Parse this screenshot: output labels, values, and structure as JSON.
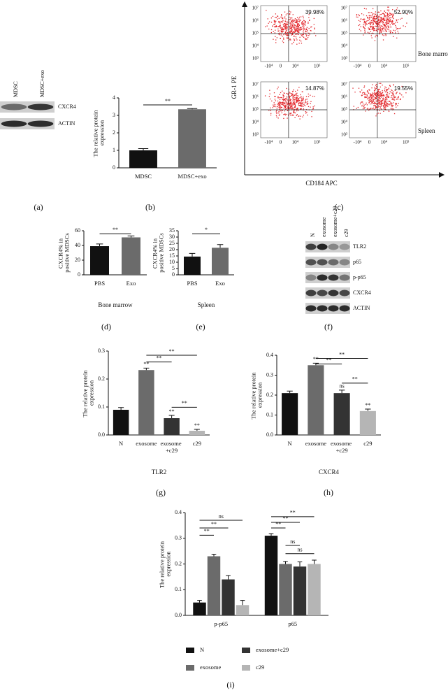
{
  "panel_labels": [
    "(a)",
    "(b)",
    "(c)",
    "(d)",
    "(e)",
    "(f)",
    "(g)",
    "(h)",
    "(i)"
  ],
  "blot_a": {
    "lanes": [
      "MDSC",
      "MDSC+exo"
    ],
    "rows": [
      "CXCR4",
      "ACTIN"
    ]
  },
  "flow": {
    "y_label": "GR-1 PE",
    "x_label": "CD184 APC",
    "tissues": [
      "Bone marrow",
      "Spleen"
    ],
    "yticks": [
      "10⁷",
      "10⁶",
      "10⁵",
      "10⁴",
      "10³"
    ],
    "xticks": [
      "-10⁴",
      "0",
      "10⁴",
      "10⁵"
    ],
    "percentages": [
      "39.98%",
      "52.90%",
      "14.87%",
      "19.55%"
    ]
  },
  "blot_f": {
    "lanes": [
      "N",
      "exosome",
      "exosome+c29",
      "c29"
    ],
    "rows": [
      "TLR2",
      "p65",
      "p-p65",
      "CXCR4",
      "ACTIN"
    ]
  },
  "chart_data": [
    {
      "type": "bar",
      "ylabel": "The relative protein expression",
      "categories": [
        "MDSC",
        "MDSC+exo"
      ],
      "values": [
        1.0,
        3.35
      ],
      "errors": [
        0.1,
        0.04
      ],
      "colors": [
        "#111111",
        "#6b6b6b"
      ],
      "ylim": [
        0,
        4
      ],
      "yticks": [
        0,
        1,
        2,
        3,
        4
      ],
      "brackets": [
        "**"
      ]
    },
    {
      "type": "bar",
      "ylabel": "CXCR4% in positive MDSCs",
      "xlabel": "Bone marrow",
      "categories": [
        "PBS",
        "Exo"
      ],
      "values": [
        39,
        51
      ],
      "errors": [
        3,
        2
      ],
      "colors": [
        "#111111",
        "#6b6b6b"
      ],
      "ylim": [
        0,
        60
      ],
      "yticks": [
        0,
        20,
        40,
        60
      ],
      "brackets": [
        "**"
      ]
    },
    {
      "type": "bar",
      "ylabel": "CXCR4% in positive MDSCs",
      "xlabel": "Spleen",
      "categories": [
        "PBS",
        "Exo"
      ],
      "values": [
        14.5,
        21.5
      ],
      "errors": [
        2.5,
        2.5
      ],
      "colors": [
        "#111111",
        "#6b6b6b"
      ],
      "ylim": [
        0,
        35
      ],
      "yticks": [
        0,
        5,
        10,
        15,
        20,
        25,
        30,
        35
      ],
      "brackets": [
        "*"
      ]
    },
    {
      "type": "bar",
      "ylabel": "The relative protein expression",
      "xlabel": "TLR2",
      "categories": [
        "N",
        "exosome",
        "exosome +c29",
        "c29"
      ],
      "values": [
        0.09,
        0.232,
        0.06,
        0.015
      ],
      "errors": [
        0.008,
        0.007,
        0.01,
        0.005
      ],
      "colors": [
        "#111111",
        "#6b6b6b",
        "#333333",
        "#b5b5b5"
      ],
      "ylim": [
        0,
        0.3
      ],
      "yticks": [
        {
          "value": 0,
          "label": "0.0"
        },
        0.1,
        0.2,
        0.3
      ],
      "bar_labels": [
        null,
        "**",
        "**",
        "**"
      ],
      "brackets": [
        "**",
        "**",
        "**"
      ]
    },
    {
      "type": "bar",
      "ylabel": "The relative protein expression",
      "xlabel": "CXCR4",
      "categories": [
        "N",
        "exosome",
        "exosome +c29",
        "c29"
      ],
      "values": [
        0.21,
        0.35,
        0.21,
        0.12
      ],
      "errors": [
        0.01,
        0.01,
        0.015,
        0.01
      ],
      "colors": [
        "#111111",
        "#6b6b6b",
        "#333333",
        "#b5b5b5"
      ],
      "ylim": [
        0,
        0.4
      ],
      "yticks": [
        {
          "value": 0,
          "label": "0.0"
        },
        0.1,
        0.2,
        0.3,
        0.4
      ],
      "bar_labels": [
        null,
        "**",
        "ns",
        "**"
      ],
      "brackets": [
        "**",
        "**",
        "**"
      ]
    },
    {
      "type": "bar",
      "ylabel": "The relative protein expression",
      "categories": [
        "p-p65",
        "p65"
      ],
      "series": [
        {
          "name": "N",
          "color": "#111111",
          "values": [
            0.05,
            0.31
          ],
          "errors": [
            0.008,
            0.008
          ]
        },
        {
          "name": "exosome",
          "color": "#6b6b6b",
          "values": [
            0.23,
            0.2
          ],
          "errors": [
            0.008,
            0.01
          ]
        },
        {
          "name": "exosome+c29",
          "color": "#333333",
          "values": [
            0.14,
            0.19
          ],
          "errors": [
            0.015,
            0.018
          ]
        },
        {
          "name": "c29",
          "color": "#b5b5b5",
          "values": [
            0.04,
            0.2
          ],
          "errors": [
            0.018,
            0.015
          ]
        }
      ],
      "ylim": [
        0,
        0.4
      ],
      "yticks": [
        {
          "value": 0,
          "label": "0.0"
        },
        0.1,
        0.2,
        0.3,
        0.4
      ],
      "brackets": [
        "ns",
        "**",
        "**",
        "**",
        "**",
        "**",
        "ns",
        "ns"
      ]
    }
  ]
}
